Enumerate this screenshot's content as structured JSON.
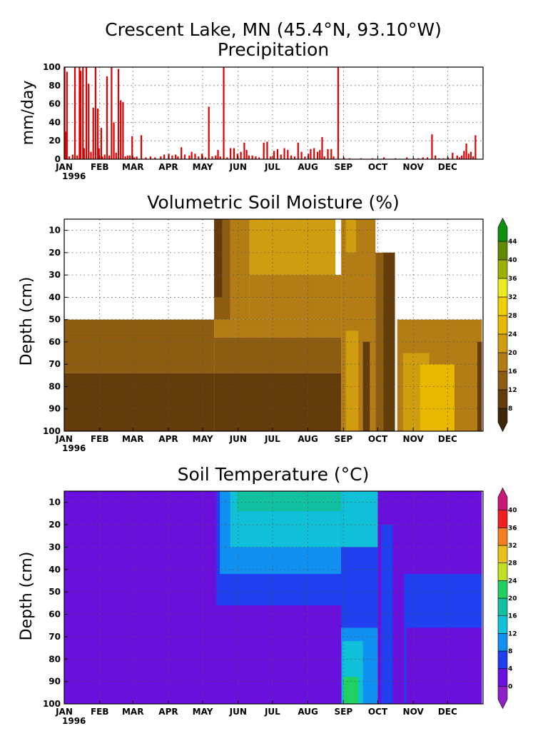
{
  "figure": {
    "title_line1": "Crescent Lake, MN (45.4°N, 93.10°W)",
    "year_label": "1996"
  },
  "chart_data": [
    {
      "type": "bar",
      "title": "Precipitation",
      "ylabel": "mm/day",
      "xlabel": "",
      "ylim": [
        0,
        100
      ],
      "yticks": [
        0,
        20,
        40,
        60,
        80,
        100
      ],
      "grid": true,
      "bar_color": "#e00000",
      "months": [
        "JAN",
        "FEB",
        "MAR",
        "APR",
        "MAY",
        "JUN",
        "JUL",
        "AUG",
        "SEP",
        "OCT",
        "NOV",
        "DEC"
      ],
      "x_unit": "day_of_year_1996",
      "x": [
        1,
        2,
        3,
        5,
        8,
        10,
        12,
        14,
        15,
        17,
        18,
        20,
        22,
        24,
        26,
        28,
        30,
        31,
        33,
        34,
        36,
        38,
        40,
        42,
        44,
        46,
        48,
        50,
        52,
        54,
        56,
        58,
        60,
        62,
        64,
        68,
        72,
        76,
        80,
        85,
        88,
        92,
        95,
        98,
        100,
        103,
        106,
        110,
        112,
        115,
        118,
        121,
        124,
        127,
        130,
        133,
        135,
        137,
        140,
        143,
        146,
        149,
        152,
        155,
        158,
        160,
        162,
        165,
        168,
        171,
        175,
        178,
        181,
        184,
        187,
        190,
        193,
        196,
        199,
        202,
        205,
        208,
        211,
        214,
        216,
        219,
        222,
        224,
        226,
        228,
        231,
        234,
        236,
        240,
        245,
        250,
        260,
        270,
        280,
        290,
        300,
        306,
        310,
        314,
        318,
        322,
        325,
        328,
        332,
        336,
        340,
        344,
        346,
        348,
        350,
        352,
        354,
        356,
        358,
        360
      ],
      "y": [
        100,
        30,
        95,
        3,
        5,
        100,
        4,
        100,
        96,
        100,
        12,
        100,
        82,
        8,
        56,
        100,
        55,
        12,
        34,
        3,
        5,
        90,
        4,
        100,
        40,
        7,
        98,
        64,
        62,
        3,
        4,
        4,
        25,
        2,
        3,
        26,
        2,
        3,
        2,
        3,
        5,
        6,
        4,
        5,
        3,
        13,
        5,
        4,
        8,
        6,
        3,
        6,
        2,
        57,
        3,
        4,
        10,
        3,
        100,
        2,
        12,
        12,
        6,
        8,
        18,
        10,
        4,
        4,
        3,
        2,
        18,
        19,
        3,
        9,
        11,
        5,
        12,
        10,
        4,
        3,
        18,
        8,
        3,
        6,
        11,
        12,
        8,
        10,
        24,
        3,
        11,
        11,
        3,
        100,
        2,
        1,
        1,
        1,
        2,
        1,
        2,
        1,
        1,
        2,
        2,
        27,
        4,
        1,
        1,
        2,
        7,
        4,
        2,
        4,
        9,
        17,
        6,
        8,
        3,
        26
      ]
    },
    {
      "type": "heatmap",
      "title": "Volumetric Soil Moisture (%)",
      "ylabel": "Depth (cm)",
      "xlabel": "",
      "ylim": [
        100,
        5
      ],
      "yticks": [
        10,
        20,
        30,
        40,
        50,
        60,
        70,
        80,
        90,
        100
      ],
      "months": [
        "JAN",
        "FEB",
        "MAR",
        "APR",
        "MAY",
        "JUN",
        "JUL",
        "AUG",
        "SEP",
        "OCT",
        "NOV",
        "DEC"
      ],
      "grid": true,
      "colorbar": {
        "levels": [
          8,
          12,
          16,
          20,
          24,
          28,
          32,
          36,
          40,
          44
        ],
        "labels": [
          "8",
          "12",
          "16",
          "20",
          "24",
          "28",
          "32",
          "36",
          "40",
          "44"
        ],
        "colors": [
          "#3c2808",
          "#643c0c",
          "#8c5c10",
          "#b47c14",
          "#d09c10",
          "#e8b800",
          "#f0d000",
          "#ecec20",
          "#a0b000",
          "#608800",
          "#109010"
        ]
      },
      "regions": [
        {
          "d0": 1,
          "d1": 132,
          "z0": 50,
          "z1": 56,
          "v": 12
        },
        {
          "d0": 1,
          "d1": 132,
          "z0": 56,
          "z1": 74,
          "v": 12
        },
        {
          "d0": 1,
          "d1": 132,
          "z0": 74,
          "z1": 100,
          "v": 8
        },
        {
          "d0": 132,
          "d1": 243,
          "z0": 50,
          "z1": 58,
          "v": 16
        },
        {
          "d0": 132,
          "d1": 243,
          "z0": 58,
          "z1": 74,
          "v": 12
        },
        {
          "d0": 132,
          "d1": 243,
          "z0": 74,
          "z1": 100,
          "v": 8
        },
        {
          "d0": 132,
          "d1": 146,
          "z0": 5,
          "z1": 50,
          "v": 12
        },
        {
          "d0": 132,
          "d1": 139,
          "z0": 5,
          "z1": 40,
          "v": 8
        },
        {
          "d0": 146,
          "d1": 163,
          "z0": 5,
          "z1": 50,
          "v": 16
        },
        {
          "d0": 163,
          "d1": 238,
          "z0": 5,
          "z1": 30,
          "v": 20
        },
        {
          "d0": 163,
          "d1": 243,
          "z0": 30,
          "z1": 50,
          "v": 16
        },
        {
          "d0": 243,
          "d1": 273,
          "z0": 5,
          "z1": 100,
          "v": 16
        },
        {
          "d0": 247,
          "d1": 256,
          "z0": 5,
          "z1": 20,
          "v": 20
        },
        {
          "d0": 247,
          "d1": 258,
          "z0": 55,
          "z1": 100,
          "v": 20
        },
        {
          "d0": 262,
          "d1": 268,
          "z0": 60,
          "z1": 100,
          "v": 8
        },
        {
          "d0": 273,
          "d1": 290,
          "z0": 20,
          "z1": 100,
          "v": 12
        },
        {
          "d0": 280,
          "d1": 290,
          "z0": 20,
          "z1": 100,
          "v": 8
        },
        {
          "d0": 292,
          "d1": 366,
          "z0": 50,
          "z1": 100,
          "v": 16
        },
        {
          "d0": 297,
          "d1": 320,
          "z0": 65,
          "z1": 100,
          "v": 20
        },
        {
          "d0": 312,
          "d1": 342,
          "z0": 70,
          "z1": 100,
          "v": 24
        },
        {
          "d0": 362,
          "d1": 366,
          "z0": 60,
          "z1": 100,
          "v": 8
        }
      ]
    },
    {
      "type": "heatmap",
      "title": "Soil Temperature (°C)",
      "ylabel": "Depth (cm)",
      "xlabel": "",
      "ylim": [
        100,
        5
      ],
      "yticks": [
        10,
        20,
        30,
        40,
        50,
        60,
        70,
        80,
        90,
        100
      ],
      "months": [
        "JAN",
        "FEB",
        "MAR",
        "APR",
        "MAY",
        "JUN",
        "JUL",
        "AUG",
        "SEP",
        "OCT",
        "NOV",
        "DEC"
      ],
      "grid": true,
      "colorbar": {
        "levels": [
          0,
          4,
          8,
          12,
          16,
          20,
          24,
          28,
          32,
          36,
          40
        ],
        "labels": [
          "0",
          "4",
          "8",
          "12",
          "16",
          "20",
          "24",
          "28",
          "32",
          "36",
          "40"
        ],
        "colors": [
          "#9020c8",
          "#6a10dc",
          "#2040f0",
          "#1090f0",
          "#10c0d8",
          "#10c0a0",
          "#20d060",
          "#c0e020",
          "#e8c020",
          "#f08020",
          "#f02020",
          "#c81878"
        ]
      },
      "regions": [
        {
          "d0": 1,
          "d1": 366,
          "z0": 5,
          "z1": 100,
          "v": 2
        },
        {
          "d0": 1,
          "d1": 21,
          "z0": 20,
          "z1": 50,
          "v": 2
        },
        {
          "d0": 7,
          "d1": 20,
          "z0": 25,
          "z1": 48,
          "v": 1
        },
        {
          "d0": 130,
          "d1": 137,
          "z0": 5,
          "z1": 100,
          "v": 2
        },
        {
          "d0": 134,
          "d1": 243,
          "z0": 5,
          "z1": 56,
          "v": 6
        },
        {
          "d0": 137,
          "d1": 243,
          "z0": 5,
          "z1": 42,
          "v": 10
        },
        {
          "d0": 146,
          "d1": 243,
          "z0": 5,
          "z1": 30,
          "v": 14
        },
        {
          "d0": 152,
          "d1": 243,
          "z0": 5,
          "z1": 14,
          "v": 18
        },
        {
          "d0": 243,
          "d1": 275,
          "z0": 5,
          "z1": 66,
          "v": 6
        },
        {
          "d0": 243,
          "d1": 275,
          "z0": 5,
          "z1": 30,
          "v": 14
        },
        {
          "d0": 243,
          "d1": 275,
          "z0": 66,
          "z1": 100,
          "v": 10
        },
        {
          "d0": 244,
          "d1": 262,
          "z0": 72,
          "z1": 100,
          "v": 14
        },
        {
          "d0": 245,
          "d1": 258,
          "z0": 88,
          "z1": 100,
          "v": 22
        },
        {
          "d0": 278,
          "d1": 366,
          "z0": 20,
          "z1": 100,
          "v": 6
        },
        {
          "d0": 288,
          "d1": 298,
          "z0": 20,
          "z1": 100,
          "v": 2
        },
        {
          "d0": 298,
          "d1": 366,
          "z0": 20,
          "z1": 42,
          "v": 2
        },
        {
          "d0": 300,
          "d1": 366,
          "z0": 66,
          "z1": 100,
          "v": 2
        }
      ]
    }
  ]
}
